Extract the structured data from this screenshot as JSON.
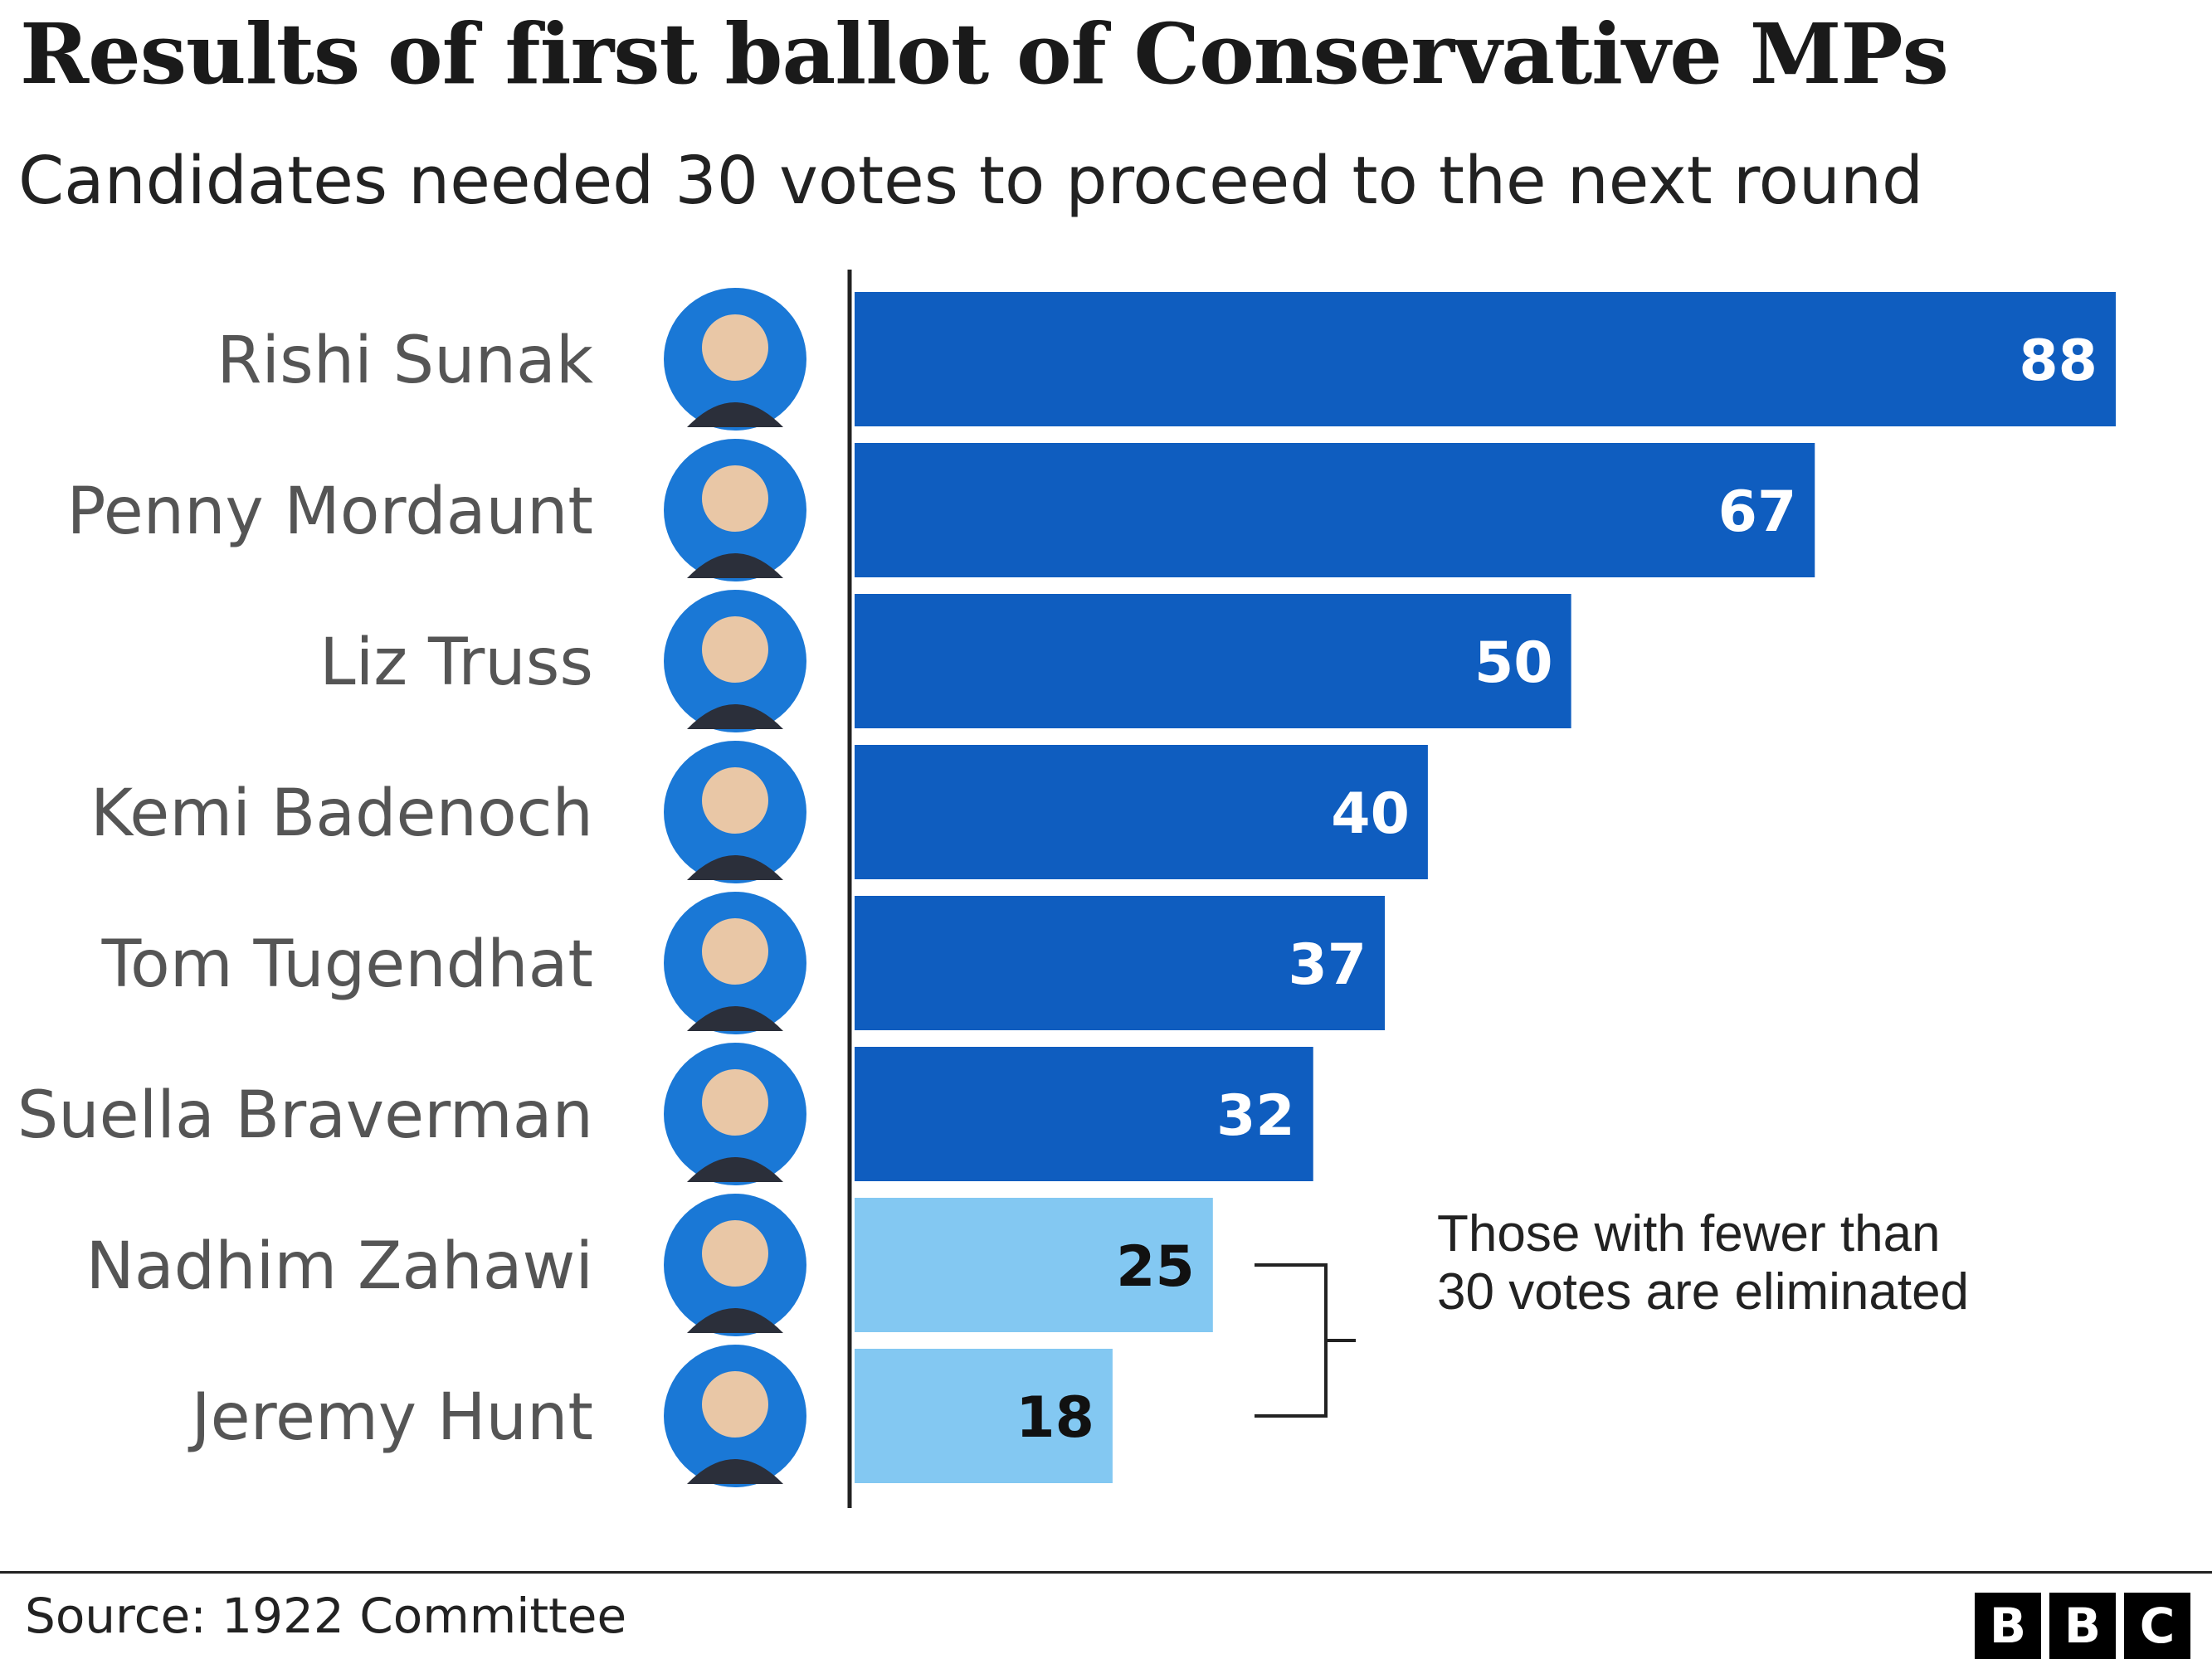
{
  "title": "Results of first ballot of Conservative MPs",
  "subtitle": "Candidates needed 30 votes to proceed to the next round",
  "source": "Source: 1922 Committee",
  "logo_letters": [
    "B",
    "B",
    "C"
  ],
  "colors": {
    "proceed_bar": "#0f5dbf",
    "eliminated_bar": "#83c8f2",
    "avatar_ring": "#1a78d6",
    "label_text": "#555555",
    "axis": "#222222"
  },
  "chart_data": {
    "type": "bar",
    "orientation": "horizontal",
    "title": "Results of first ballot of Conservative MPs",
    "subtitle": "Candidates needed 30 votes to proceed to the next round",
    "threshold": 30,
    "xlim": [
      0,
      88
    ],
    "grid": false,
    "categories": [
      "Rishi Sunak",
      "Penny Mordaunt",
      "Liz Truss",
      "Kemi Badenoch",
      "Tom Tugendhat",
      "Suella Braverman",
      "Nadhim Zahawi",
      "Jeremy Hunt"
    ],
    "values": [
      88,
      67,
      50,
      40,
      37,
      32,
      25,
      18
    ],
    "status": [
      "proceed",
      "proceed",
      "proceed",
      "proceed",
      "proceed",
      "proceed",
      "eliminated",
      "eliminated"
    ],
    "annotation": {
      "lines": [
        "Those with fewer than",
        "30 votes are eliminated"
      ]
    }
  }
}
